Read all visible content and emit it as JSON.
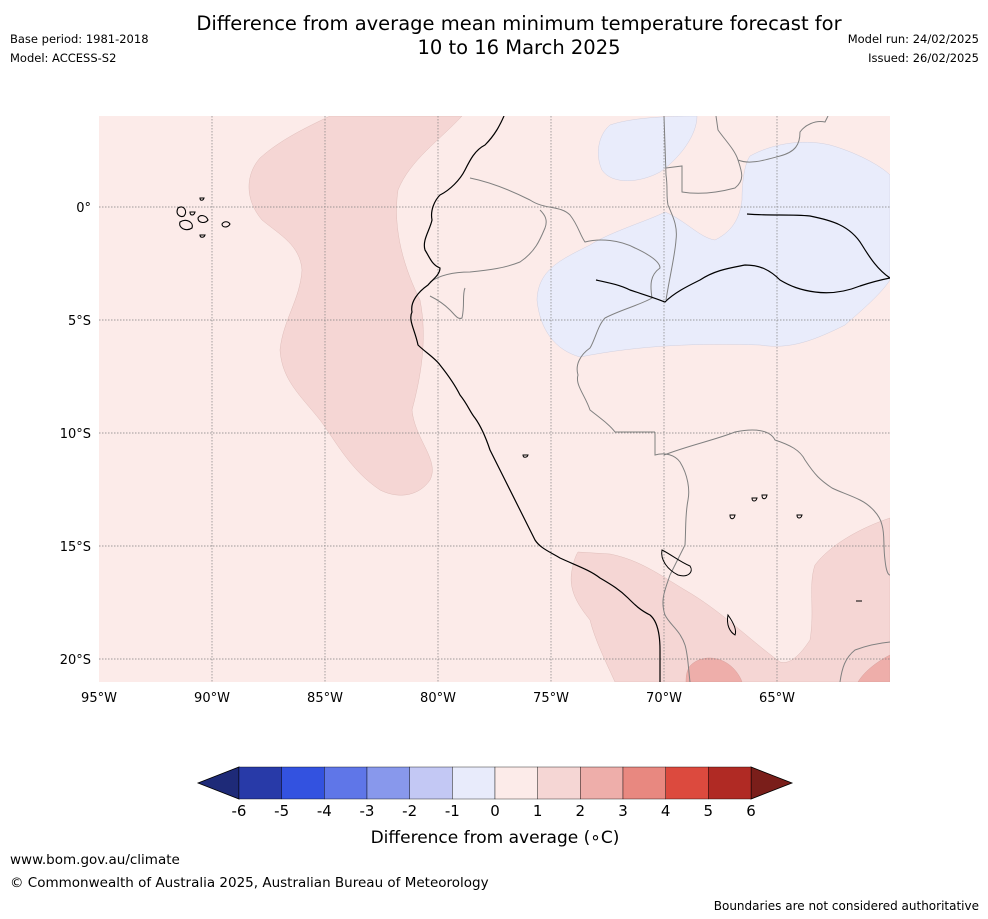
{
  "title": {
    "line1": "Difference from average mean minimum temperature forecast for",
    "line2": "10 to 16 March 2025"
  },
  "meta": {
    "base_period": "Base period: 1981-2018",
    "model": "Model: ACCESS-S2",
    "model_run": "Model run: 24/02/2025",
    "issued": "Issued: 26/02/2025"
  },
  "map": {
    "lat_labels": [
      "0°",
      "5°S",
      "10°S",
      "15°S",
      "20°S"
    ],
    "lon_labels": [
      "95°W",
      "90°W",
      "85°W",
      "80°W",
      "75°W",
      "70°W",
      "65°W"
    ],
    "extent": {
      "lon_min": -95,
      "lon_max": -60,
      "lat_min": -21,
      "lat_max": 4
    },
    "colors": {
      "bin_0_1": "#fcebe9",
      "bin_1_2": "#f5d6d4",
      "bin_2_3": "#eeaeaa",
      "bin_m1_0": "#e9ecfb",
      "coastline": "#000000",
      "borders": "#808080",
      "gridlines": "#7f7f7f"
    }
  },
  "colorbar": {
    "label": "Difference from average (∘C)",
    "tick_labels": [
      "-6",
      "-5",
      "-4",
      "-3",
      "-2",
      "-1",
      "0",
      "1",
      "2",
      "3",
      "4",
      "5",
      "6"
    ],
    "colors": [
      "#283aa8",
      "#3352e0",
      "#5f76e8",
      "#8898ec",
      "#c3c8f4",
      "#e8ebfb",
      "#fcebe9",
      "#f5d6d4",
      "#eeaeaa",
      "#e88880",
      "#dc4a3e",
      "#b02a24"
    ],
    "under_color": "#1e2a78",
    "over_color": "#7a1e1a"
  },
  "footer": {
    "url": "www.bom.gov.au/climate",
    "copyright": "© Commonwealth of Australia 2025, Australian Bureau of Meteorology",
    "disclaimer": "Boundaries are not considered authoritative"
  }
}
